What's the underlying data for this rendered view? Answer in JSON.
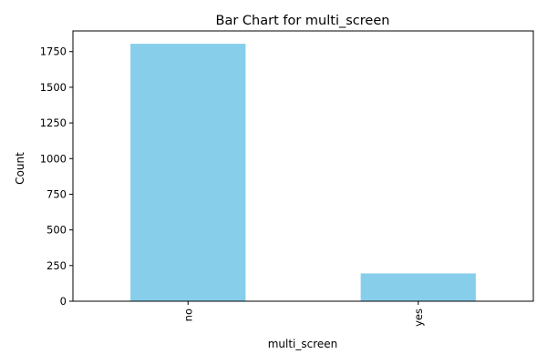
{
  "chart_data": {
    "type": "bar",
    "title": "Bar Chart for multi_screen",
    "xlabel": "multi_screen",
    "ylabel": "Count",
    "categories": [
      "no",
      "yes"
    ],
    "values": [
      1805,
      195
    ],
    "ylim": [
      0,
      1895
    ],
    "yticks": [
      0,
      250,
      500,
      750,
      1000,
      1250,
      1500,
      1750
    ],
    "grid": false,
    "legend": "none",
    "bar_color": "#87CEEB"
  }
}
